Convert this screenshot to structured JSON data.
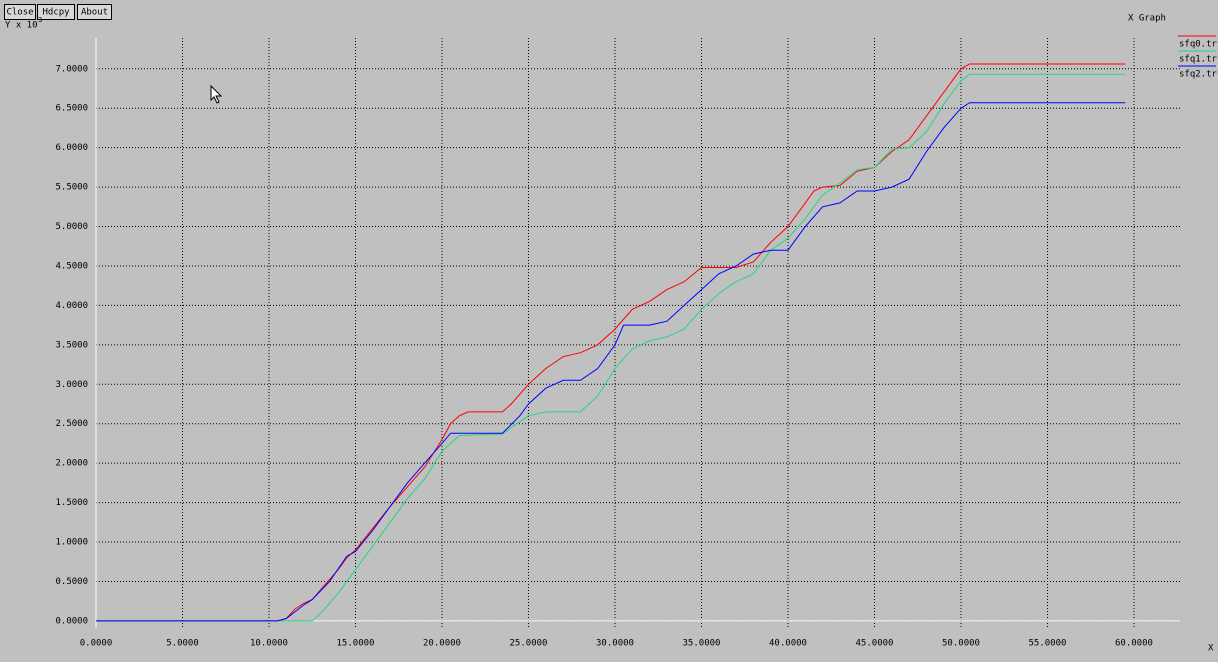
{
  "buttons": [
    "Close",
    "Hdcpy",
    "About"
  ],
  "window_title": "X Graph",
  "chart_data": {
    "type": "line",
    "ylabel": "Y x 10",
    "ylabel_exponent": "3",
    "xlabel": "X",
    "xlim": [
      0,
      62660
    ],
    "ylim": [
      -0.09,
      7.39
    ],
    "xticks": [
      {
        "value": 0,
        "label": "0.0000"
      },
      {
        "value": 5000,
        "label": "5.0000"
      },
      {
        "value": 10000,
        "label": "10.0000"
      },
      {
        "value": 15000,
        "label": "15.0000"
      },
      {
        "value": 20000,
        "label": "20.0000"
      },
      {
        "value": 25000,
        "label": "25.0000"
      },
      {
        "value": 30000,
        "label": "30.0000"
      },
      {
        "value": 35000,
        "label": "35.0000"
      },
      {
        "value": 40000,
        "label": "40.0000"
      },
      {
        "value": 45000,
        "label": "45.0000"
      },
      {
        "value": 50000,
        "label": "50.0000"
      },
      {
        "value": 55000,
        "label": "55.0000"
      },
      {
        "value": 60000,
        "label": "60.0000"
      }
    ],
    "yticks": [
      {
        "value": 0,
        "label": "0.0000"
      },
      {
        "value": 0.5,
        "label": "0.5000"
      },
      {
        "value": 1,
        "label": "1.0000"
      },
      {
        "value": 1.5,
        "label": "1.5000"
      },
      {
        "value": 2,
        "label": "2.0000"
      },
      {
        "value": 2.5,
        "label": "2.5000"
      },
      {
        "value": 3,
        "label": "3.0000"
      },
      {
        "value": 3.5,
        "label": "3.5000"
      },
      {
        "value": 4,
        "label": "4.0000"
      },
      {
        "value": 4.5,
        "label": "4.5000"
      },
      {
        "value": 5,
        "label": "5.0000"
      },
      {
        "value": 5.5,
        "label": "5.5000"
      },
      {
        "value": 6,
        "label": "6.0000"
      },
      {
        "value": 6.5,
        "label": "6.5000"
      },
      {
        "value": 7,
        "label": "7.0000"
      }
    ],
    "grid": true,
    "legend": "top-right",
    "series": [
      {
        "name": "sfq0.tr",
        "color": "#ff0000",
        "x": [
          0,
          10500,
          11000,
          11500,
          12000,
          12500,
          13000,
          14000,
          14500,
          15000,
          17000,
          19000,
          20000,
          20500,
          21000,
          21500,
          23500,
          24000,
          25000,
          26000,
          27000,
          28000,
          28500,
          29000,
          30000,
          31000,
          32000,
          33000,
          34000,
          35000,
          37000,
          38000,
          39000,
          40000,
          41000,
          41500,
          42000,
          43000,
          44000,
          45000,
          46000,
          47000,
          48000,
          49000,
          50000,
          50500,
          59500
        ],
        "values": [
          0,
          0,
          0.03,
          0.15,
          0.22,
          0.27,
          0.4,
          0.65,
          0.8,
          0.9,
          1.45,
          1.95,
          2.3,
          2.5,
          2.6,
          2.65,
          2.65,
          2.75,
          3.0,
          3.2,
          3.35,
          3.4,
          3.45,
          3.5,
          3.7,
          3.95,
          4.05,
          4.2,
          4.3,
          4.48,
          4.48,
          4.55,
          4.8,
          5.0,
          5.3,
          5.45,
          5.5,
          5.52,
          5.7,
          5.75,
          5.95,
          6.1,
          6.4,
          6.7,
          7.0,
          7.06,
          7.06
        ]
      },
      {
        "name": "sfq1.tr",
        "color": "#20d880",
        "x": [
          0,
          12500,
          13000,
          14000,
          15000,
          16000,
          17000,
          18000,
          19000,
          20000,
          21000,
          23500,
          24000,
          25000,
          26000,
          28000,
          29000,
          30000,
          31000,
          32000,
          33000,
          34000,
          35000,
          36000,
          37000,
          38000,
          39000,
          40000,
          41000,
          42000,
          43000,
          44000,
          45000,
          46000,
          47000,
          48000,
          49000,
          50000,
          50500,
          59500
        ],
        "values": [
          0,
          0,
          0.1,
          0.35,
          0.65,
          0.95,
          1.25,
          1.55,
          1.8,
          2.15,
          2.35,
          2.37,
          2.45,
          2.6,
          2.65,
          2.65,
          2.85,
          3.2,
          3.45,
          3.55,
          3.6,
          3.7,
          3.95,
          4.15,
          4.3,
          4.4,
          4.7,
          4.85,
          5.1,
          5.4,
          5.55,
          5.72,
          5.75,
          5.98,
          6.0,
          6.2,
          6.55,
          6.85,
          6.93,
          6.93
        ]
      },
      {
        "name": "sfq2.tr",
        "color": "#0000ff",
        "x": [
          0,
          10500,
          11000,
          12000,
          12500,
          13500,
          14500,
          15000,
          16000,
          17000,
          18000,
          19000,
          20000,
          20500,
          23500,
          24500,
          25000,
          26000,
          27000,
          28000,
          29000,
          30000,
          30500,
          32000,
          33000,
          34000,
          35000,
          36000,
          37000,
          38000,
          39000,
          40000,
          41000,
          42000,
          43000,
          44000,
          45000,
          46000,
          47000,
          48000,
          49000,
          50000,
          50500,
          59500
        ],
        "values": [
          0,
          0,
          0.03,
          0.2,
          0.27,
          0.5,
          0.82,
          0.88,
          1.15,
          1.45,
          1.75,
          2.0,
          2.25,
          2.38,
          2.38,
          2.6,
          2.75,
          2.95,
          3.05,
          3.05,
          3.2,
          3.5,
          3.75,
          3.75,
          3.8,
          4.0,
          4.2,
          4.4,
          4.5,
          4.65,
          4.7,
          4.7,
          5.0,
          5.25,
          5.3,
          5.45,
          5.45,
          5.5,
          5.6,
          5.95,
          6.25,
          6.5,
          6.57,
          6.57
        ]
      }
    ]
  }
}
